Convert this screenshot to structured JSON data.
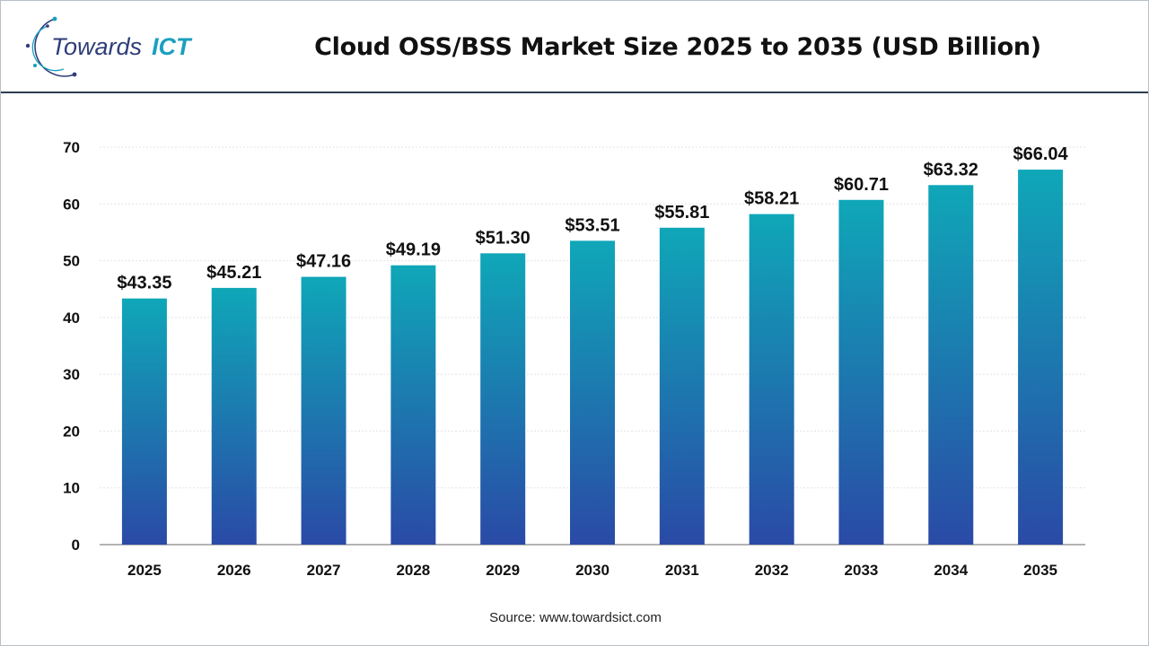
{
  "header": {
    "logo_text_main": "Towards",
    "logo_text_accent": "ICT",
    "title": "Cloud OSS/BSS Market Size 2025 to 2035 (USD Billion)"
  },
  "source": "Source: www.towardsict.com",
  "colors": {
    "bar_top": "#0fa7b8",
    "bar_bottom": "#2a4aa6",
    "logo_main": "#2f3d7a",
    "logo_accent": "#1a9fc0",
    "grid": "#e3e3e3",
    "axis": "#9a9a9a"
  },
  "chart_data": {
    "type": "bar",
    "title": "Cloud OSS/BSS Market Size 2025 to 2035 (USD Billion)",
    "xlabel": "",
    "ylabel": "",
    "categories": [
      "2025",
      "2026",
      "2027",
      "2028",
      "2029",
      "2030",
      "2031",
      "2032",
      "2033",
      "2034",
      "2035"
    ],
    "values": [
      43.35,
      45.21,
      47.16,
      49.19,
      51.3,
      53.51,
      55.81,
      58.21,
      60.71,
      63.32,
      66.04
    ],
    "data_labels": [
      "$43.35",
      "$45.21",
      "$47.16",
      "$49.19",
      "$51.30",
      "$53.51",
      "$55.81",
      "$58.21",
      "$60.71",
      "$63.32",
      "$66.04"
    ],
    "yticks": [
      0,
      10,
      20,
      30,
      40,
      50,
      60,
      70
    ],
    "ylim": [
      0,
      70
    ],
    "grid": true,
    "legend": "none"
  }
}
